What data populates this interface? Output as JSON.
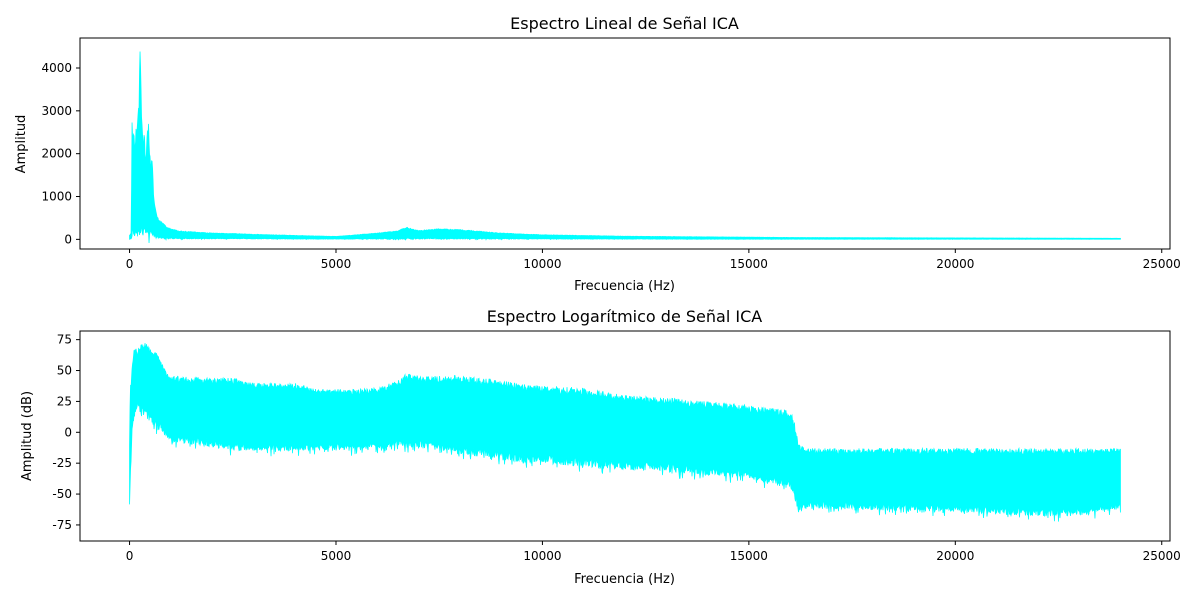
{
  "chart_data": [
    {
      "type": "area",
      "title": "Espectro Lineal de Señal ICA",
      "xlabel": "Frecuencia (Hz)",
      "ylabel": "Amplitud",
      "xlim": [
        -1200,
        25200
      ],
      "ylim": [
        -225,
        4700
      ],
      "xticks": [
        0,
        5000,
        10000,
        15000,
        20000,
        25000
      ],
      "yticks": [
        0,
        1000,
        2000,
        3000,
        4000
      ],
      "grid": false,
      "legend": "none",
      "color": "#00ffff",
      "envelope": {
        "x": [
          0,
          40,
          60,
          90,
          110,
          130,
          150,
          180,
          200,
          230,
          250,
          270,
          290,
          310,
          330,
          360,
          380,
          400,
          430,
          460,
          490,
          520,
          550,
          580,
          610,
          650,
          700,
          760,
          820,
          900,
          1000,
          1200,
          1500,
          2000,
          2500,
          3000,
          4000,
          5000,
          6000,
          6500,
          6700,
          7000,
          7500,
          8000,
          8500,
          9000,
          10000,
          12000,
          14000,
          16000,
          18000,
          20000,
          22000,
          24000
        ],
        "upper": [
          100,
          150,
          2800,
          2450,
          2650,
          2150,
          2600,
          2750,
          2950,
          3350,
          4450,
          4150,
          3050,
          2700,
          2350,
          2700,
          2000,
          1850,
          2600,
          2700,
          2050,
          1750,
          2000,
          1100,
          800,
          600,
          480,
          420,
          380,
          300,
          250,
          200,
          180,
          150,
          140,
          120,
          95,
          70,
          150,
          200,
          290,
          210,
          250,
          230,
          190,
          150,
          110,
          75,
          60,
          45,
          40,
          35,
          30,
          25
        ],
        "lower": [
          0,
          0,
          10,
          20,
          30,
          30,
          40,
          40,
          40,
          40,
          40,
          40,
          40,
          40,
          40,
          40,
          30,
          30,
          30,
          30,
          30,
          30,
          30,
          30,
          20,
          20,
          20,
          20,
          10,
          10,
          10,
          10,
          10,
          10,
          10,
          10,
          5,
          5,
          5,
          5,
          5,
          5,
          5,
          5,
          5,
          5,
          5,
          5,
          2,
          2,
          2,
          2,
          2,
          2
        ]
      }
    },
    {
      "type": "area",
      "title": "Espectro Logarítmico de Señal ICA",
      "xlabel": "Frecuencia (Hz)",
      "ylabel": "Amplitud (dB)",
      "xlim": [
        -1200,
        25200
      ],
      "ylim": [
        -88,
        82
      ],
      "xticks": [
        0,
        5000,
        10000,
        15000,
        20000,
        25000
      ],
      "yticks": [
        -75,
        -50,
        -25,
        0,
        25,
        50,
        75
      ],
      "grid": false,
      "legend": "none",
      "color": "#00ffff",
      "envelope": {
        "x": [
          0,
          20,
          40,
          60,
          100,
          150,
          200,
          250,
          300,
          400,
          500,
          600,
          700,
          800,
          900,
          1000,
          1500,
          2000,
          2500,
          3000,
          3500,
          4000,
          4500,
          5000,
          5500,
          6000,
          6500,
          6700,
          7000,
          7500,
          8000,
          8500,
          9000,
          9500,
          10000,
          11000,
          12000,
          13000,
          14000,
          15000,
          15500,
          16000,
          16100,
          16200,
          16400,
          17000,
          18000,
          19000,
          20000,
          21000,
          22000,
          23000,
          24000
        ],
        "upper": [
          -5,
          40,
          42,
          55,
          68,
          70,
          66,
          72,
          74,
          72,
          68,
          66,
          62,
          55,
          48,
          46,
          45,
          44,
          44,
          40,
          40,
          40,
          35,
          35,
          35,
          36,
          42,
          48,
          45,
          46,
          46,
          44,
          42,
          39,
          38,
          36,
          30,
          28,
          25,
          22,
          20,
          18,
          10,
          -10,
          -13,
          -13,
          -13,
          -13,
          -13,
          -13,
          -13,
          -13,
          -13
        ],
        "lower": [
          -60,
          -40,
          -20,
          0,
          10,
          15,
          20,
          15,
          15,
          12,
          8,
          5,
          2,
          0,
          -5,
          -8,
          -10,
          -12,
          -15,
          -15,
          -15,
          -15,
          -15,
          -15,
          -15,
          -14,
          -12,
          -12,
          -12,
          -15,
          -18,
          -20,
          -22,
          -25,
          -25,
          -28,
          -30,
          -32,
          -35,
          -38,
          -42,
          -45,
          -55,
          -65,
          -62,
          -62,
          -63,
          -64,
          -65,
          -66,
          -68,
          -68,
          -62
        ]
      }
    }
  ]
}
